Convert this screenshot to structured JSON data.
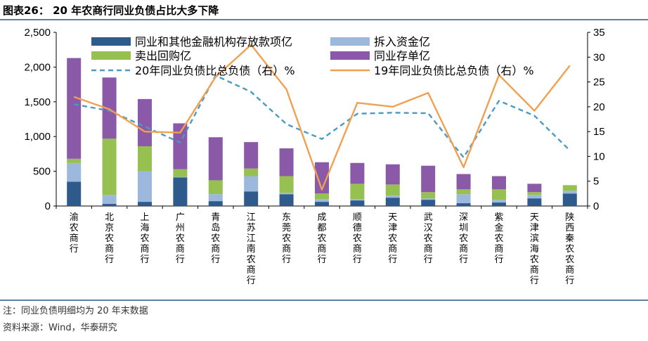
{
  "figure": {
    "title": "图表26：  20 年农商行同业负债占比大多下降",
    "note": "注：同业负债明细均为 20 年末数据",
    "source": "资料来源：Wind，华泰研究"
  },
  "chart_data": {
    "type": "bar",
    "stacked": true,
    "categories": [
      "渝农商行",
      "北京农商行",
      "上海农商行",
      "广州农商行",
      "青岛农商行",
      "江苏江南农商行",
      "东莞农商行",
      "成都农商行",
      "顺德农商行",
      "天津农商行",
      "武汉农商行",
      "深圳农商行",
      "紫金农商行",
      "天津滨海农商行",
      "陕西秦农农商行"
    ],
    "series": [
      {
        "name": "同业和其他金融机构存放款项亿",
        "color": "#2f5b8c",
        "values": [
          350,
          30,
          60,
          410,
          70,
          210,
          170,
          60,
          80,
          120,
          90,
          40,
          50,
          110,
          180
        ]
      },
      {
        "name": "拆入资金亿",
        "color": "#9cb8dc",
        "values": [
          270,
          130,
          440,
          10,
          100,
          220,
          20,
          40,
          20,
          30,
          20,
          130,
          40,
          50,
          40
        ]
      },
      {
        "name": "卖出回购亿",
        "color": "#96c04f",
        "values": [
          60,
          810,
          360,
          110,
          200,
          110,
          240,
          80,
          220,
          160,
          90,
          70,
          150,
          40,
          80
        ]
      },
      {
        "name": "同业存单亿",
        "color": "#8a59a8",
        "values": [
          1450,
          880,
          680,
          660,
          620,
          380,
          400,
          450,
          300,
          290,
          380,
          220,
          190,
          120,
          0
        ]
      }
    ],
    "lines": [
      {
        "name": "20年同业负债比总负债（右）%",
        "color": "#4a9ac4",
        "dashed": true,
        "values": [
          20.5,
          19.2,
          16.0,
          12.8,
          26.3,
          23.0,
          16.5,
          13.5,
          18.6,
          18.8,
          18.7,
          9.8,
          21.2,
          18.2,
          11.2
        ]
      },
      {
        "name": "19年同业负债比总负债（右）%",
        "color": "#f0a050",
        "dashed": false,
        "values": [
          22.0,
          19.5,
          15.0,
          14.8,
          26.0,
          32.5,
          23.5,
          3.3,
          20.8,
          20.0,
          22.8,
          7.8,
          26.4,
          19.2,
          28.3
        ]
      }
    ],
    "ylim": [
      0,
      2500
    ],
    "yticks": [
      "0",
      "500",
      "1,000",
      "1,500",
      "2,000",
      "2,500"
    ],
    "y2lim": [
      0,
      35
    ],
    "y2ticks": [
      "0",
      "5",
      "10",
      "15",
      "20",
      "25",
      "30",
      "35"
    ],
    "legend": "top, inside plot"
  }
}
